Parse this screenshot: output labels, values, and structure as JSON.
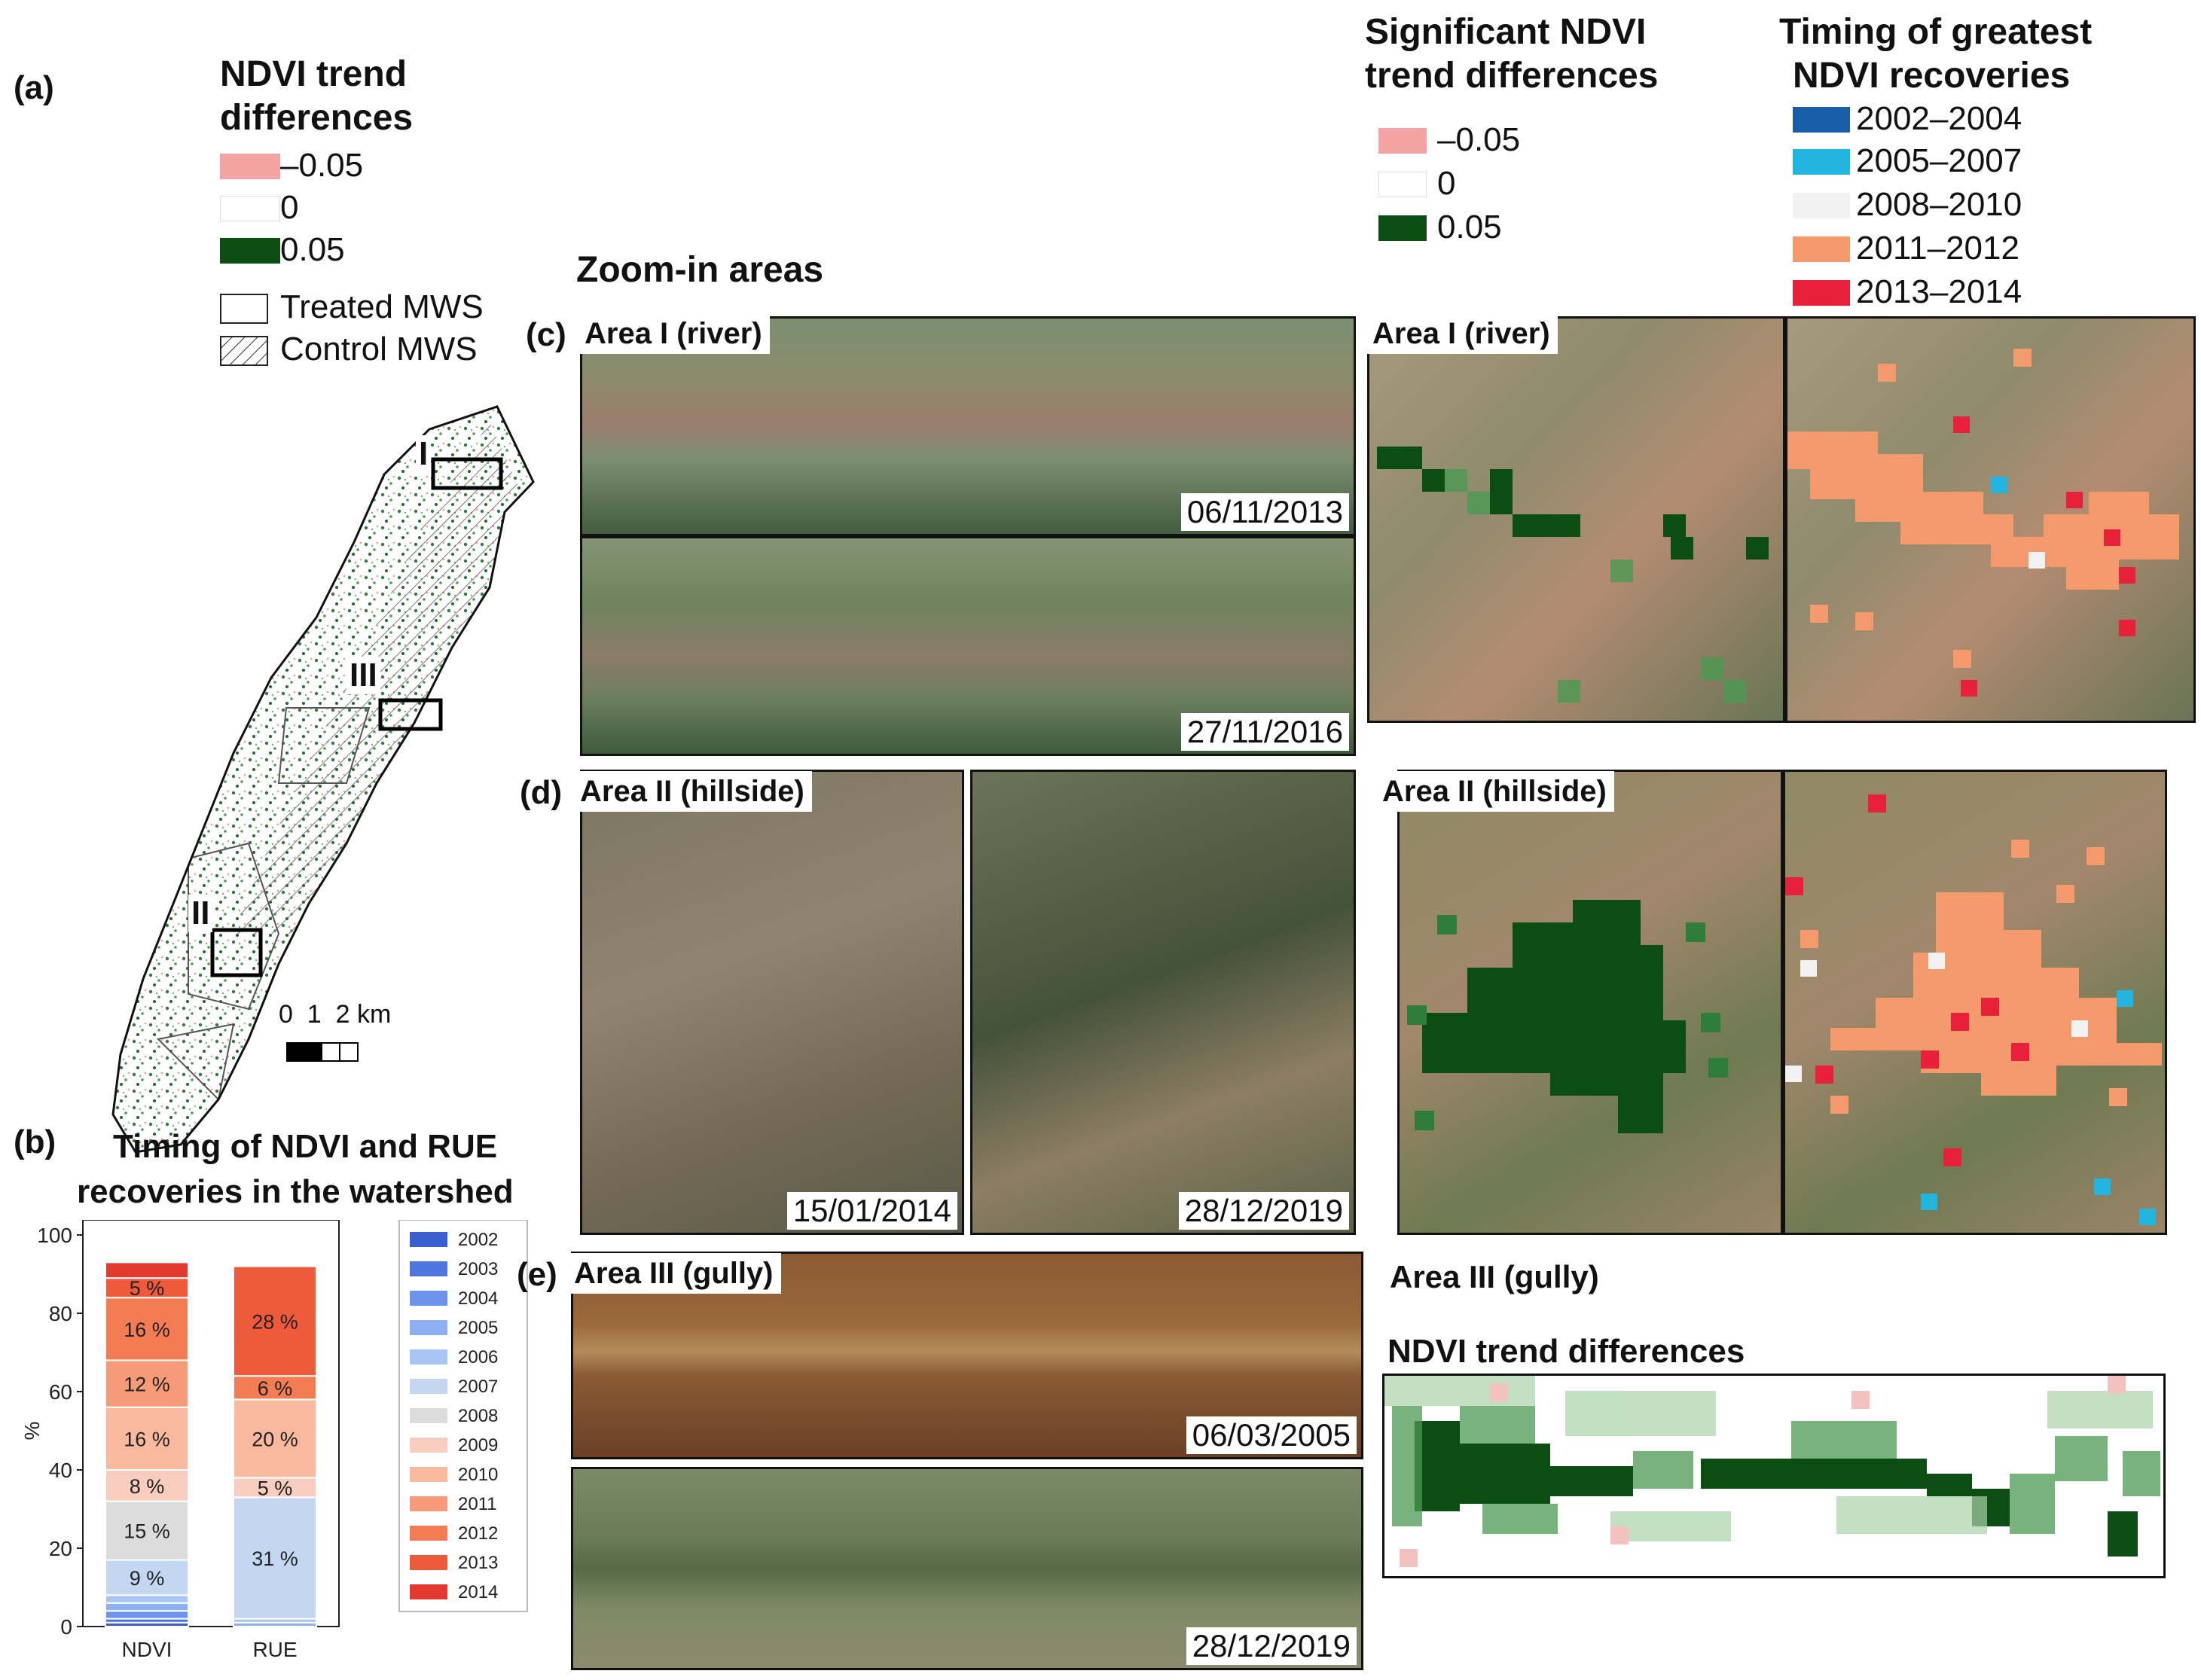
{
  "panel_labels": {
    "a": "(a)",
    "b": "(b)",
    "c": "(c)",
    "d": "(d)",
    "e": "(e)"
  },
  "legend_a": {
    "title_line1": "NDVI trend",
    "title_line2": "differences",
    "items": [
      {
        "label": "–0.05",
        "color": "#f4a3a3"
      },
      {
        "label": "0",
        "color": "#ffffff"
      },
      {
        "label": "0.05",
        "color": "#0b4d12"
      }
    ],
    "treated": "Treated MWS",
    "control": "Control MWS"
  },
  "map_a": {
    "area_labels": [
      "I",
      "III",
      "II"
    ],
    "scale_label": "0  1  2 km"
  },
  "zoom_title": "Zoom-in areas",
  "legend_sig": {
    "title_line1": "Significant NDVI",
    "title_line2": "trend differences",
    "items": [
      {
        "label": "–0.05",
        "color": "#f4a3a3"
      },
      {
        "label": "0",
        "color": "#ffffff"
      },
      {
        "label": "0.05",
        "color": "#0b4d12"
      }
    ]
  },
  "legend_timing": {
    "title_line1": "Timing of greatest",
    "title_line2": "NDVI recoveries",
    "items": [
      {
        "label": "2002–2004",
        "color": "#1a5ea8"
      },
      {
        "label": "2005–2007",
        "color": "#22b5e0"
      },
      {
        "label": "2008–2010",
        "color": "#f2f2f2"
      },
      {
        "label": "2011–2012",
        "color": "#f59a6c"
      },
      {
        "label": "2013–2014",
        "color": "#e8213a"
      }
    ]
  },
  "area_c": {
    "label": "Area I (river)",
    "date_top": "06/11/2013",
    "date_bottom": "27/11/2016",
    "label_right": "Area I (river)"
  },
  "area_d": {
    "label": "Area II (hillside)",
    "date_left": "15/01/2014",
    "date_right": "28/12/2019",
    "label_right": "Area II (hillside)"
  },
  "area_e": {
    "label": "Area III (gully)",
    "date_top": "06/03/2005",
    "date_bottom": "28/12/2019",
    "label_right": "Area III (gully)",
    "ndvi_title": "NDVI trend differences"
  },
  "chart_b": {
    "title_line1": "Timing of NDVI  and RUE",
    "title_line2": "recoveries in the watershed"
  },
  "chart_data": {
    "type": "bar",
    "stacked": true,
    "categories": [
      "NDVI",
      "RUE"
    ],
    "ylabel": "%",
    "ylim": [
      0,
      100
    ],
    "yticks": [
      0,
      20,
      40,
      60,
      80,
      100
    ],
    "legend_position": "right",
    "series": [
      {
        "name": "2002",
        "color": "#3a5fcd",
        "values": [
          1,
          0
        ]
      },
      {
        "name": "2003",
        "color": "#4f76e0",
        "values": [
          1,
          0
        ]
      },
      {
        "name": "2004",
        "color": "#6d93ec",
        "values": [
          2,
          0
        ]
      },
      {
        "name": "2005",
        "color": "#8cb0f2",
        "values": [
          2,
          1
        ]
      },
      {
        "name": "2006",
        "color": "#a8c5f4",
        "values": [
          2,
          1
        ]
      },
      {
        "name": "2007",
        "color": "#c4d7f2",
        "values": [
          9,
          31
        ]
      },
      {
        "name": "2008",
        "color": "#dcdcdc",
        "values": [
          15,
          0
        ]
      },
      {
        "name": "2009",
        "color": "#f6cdbf",
        "values": [
          8,
          5
        ]
      },
      {
        "name": "2010",
        "color": "#f9b99f",
        "values": [
          16,
          20
        ]
      },
      {
        "name": "2011",
        "color": "#f79a78",
        "values": [
          12,
          0
        ]
      },
      {
        "name": "2012",
        "color": "#f47c55",
        "values": [
          16,
          6
        ]
      },
      {
        "name": "2013",
        "color": "#ef5a3c",
        "values": [
          5,
          28
        ]
      },
      {
        "name": "2014",
        "color": "#e23a2e",
        "values": [
          4,
          0
        ]
      }
    ],
    "segment_labels": [
      {
        "bar": "NDVI",
        "series": "2007",
        "label": "9 %"
      },
      {
        "bar": "NDVI",
        "series": "2008",
        "label": "15 %"
      },
      {
        "bar": "NDVI",
        "series": "2009",
        "label": "8 %"
      },
      {
        "bar": "NDVI",
        "series": "2010",
        "label": "16 %"
      },
      {
        "bar": "NDVI",
        "series": "2011",
        "label": "12 %"
      },
      {
        "bar": "NDVI",
        "series": "2012",
        "label": "16 %"
      },
      {
        "bar": "NDVI",
        "series": "2013",
        "label": "5 %"
      },
      {
        "bar": "RUE",
        "series": "2007",
        "label": "31 %"
      },
      {
        "bar": "RUE",
        "series": "2009",
        "label": "5 %"
      },
      {
        "bar": "RUE",
        "series": "2010",
        "label": "20 %"
      },
      {
        "bar": "RUE",
        "series": "2012",
        "label": "6 %"
      },
      {
        "bar": "RUE",
        "series": "2013",
        "label": "28 %"
      }
    ]
  }
}
